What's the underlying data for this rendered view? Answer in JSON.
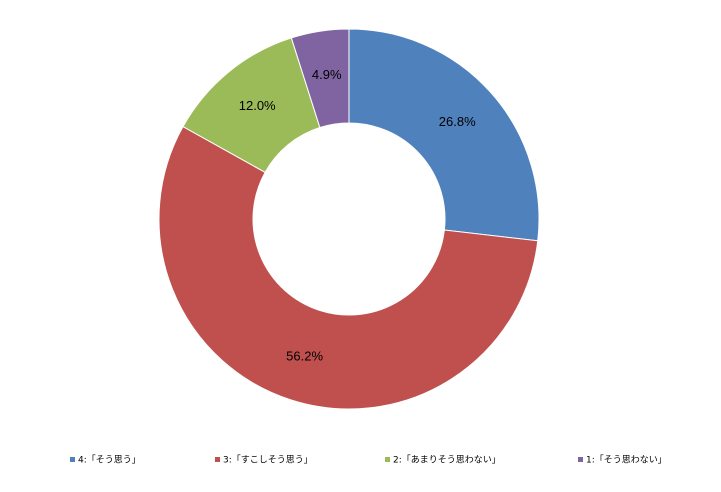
{
  "chart_data": {
    "type": "donut",
    "categories": [
      "4:「そう思う」",
      "3:「すこしそう思う」",
      "2:「あまりそう思わない」",
      "1:「そう思わない」"
    ],
    "values": [
      26.8,
      56.2,
      12.0,
      4.9
    ],
    "value_labels": [
      "26.8%",
      "56.2%",
      "12.0%",
      "4.9%"
    ],
    "colors": [
      "#4f81bd",
      "#c0504d",
      "#9bbb59",
      "#8064a2"
    ],
    "legend": "bottom"
  }
}
